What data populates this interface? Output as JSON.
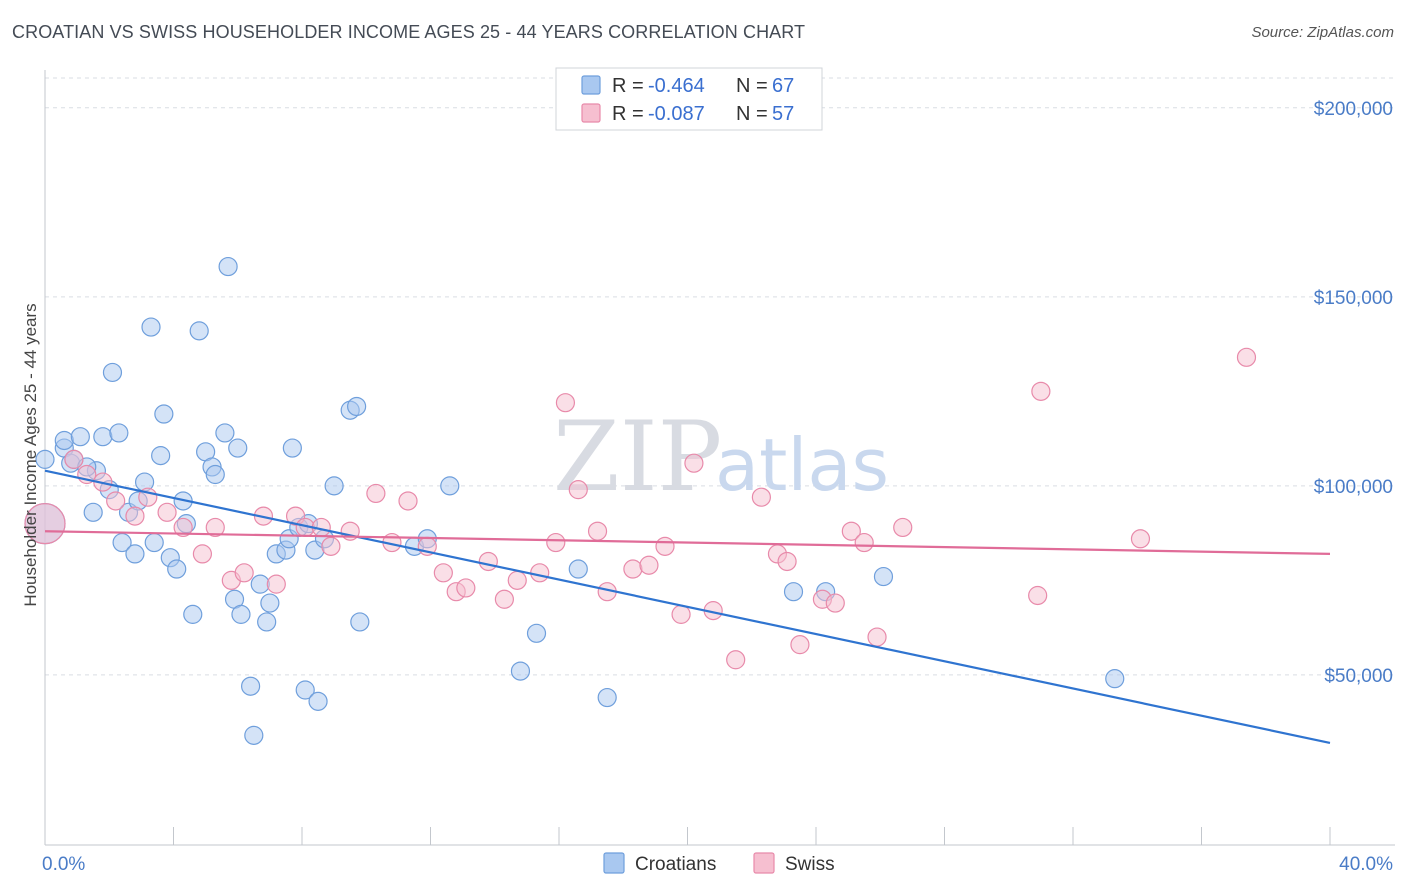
{
  "title": "CROATIAN VS SWISS HOUSEHOLDER INCOME AGES 25 - 44 YEARS CORRELATION CHART",
  "source": "Source: ZipAtlas.com",
  "watermark": {
    "zip": "ZIP",
    "atlas": "atlas"
  },
  "colors": {
    "croatians_fill": "#a9c8f0",
    "croatians_stroke": "#6f9fdc",
    "croatians_line": "#2f74d0",
    "swiss_fill": "#f6bfd0",
    "swiss_stroke": "#e88aaa",
    "swiss_line": "#e06c98",
    "grid": "#d9dde3",
    "tick_text": "#4a7cc7"
  },
  "legend": {
    "croatians": {
      "r_label": "R =",
      "r_value": "-0.464",
      "n_label": "N =",
      "n_value": "67"
    },
    "swiss": {
      "r_label": "R =",
      "r_value": "-0.087",
      "n_label": "N =",
      "n_value": "57"
    }
  },
  "bottom_legend": {
    "croatians": "Croatians",
    "swiss": "Swiss"
  },
  "chart_data": {
    "type": "scatter",
    "title": "CROATIAN VS SWISS HOUSEHOLDER INCOME AGES 25 - 44 YEARS CORRELATION CHART",
    "xlabel": "",
    "ylabel": "Householder Income Ages 25 - 44 years",
    "xlim": [
      0,
      40
    ],
    "ylim": [
      5000,
      210000
    ],
    "x_tick_labels": [
      "0.0%",
      "40.0%"
    ],
    "y_ticks": [
      50000,
      100000,
      150000,
      200000
    ],
    "y_tick_labels": [
      "$50,000",
      "$100,000",
      "$150,000",
      "$200,000"
    ],
    "grid": true,
    "legend_position": "top-center",
    "series": [
      {
        "name": "Croatians",
        "trend": {
          "x": [
            0,
            40
          ],
          "y": [
            104000,
            32000
          ]
        },
        "points": [
          [
            0.0,
            107000
          ],
          [
            0.6,
            110000
          ],
          [
            0.6,
            112000
          ],
          [
            0.8,
            106000
          ],
          [
            0.9,
            107000
          ],
          [
            1.1,
            113000
          ],
          [
            1.6,
            104000
          ],
          [
            1.3,
            105000
          ],
          [
            1.5,
            93000
          ],
          [
            1.8,
            113000
          ],
          [
            2.0,
            99000
          ],
          [
            2.1,
            130000
          ],
          [
            2.3,
            114000
          ],
          [
            2.4,
            85000
          ],
          [
            2.6,
            93000
          ],
          [
            2.8,
            82000
          ],
          [
            2.9,
            96000
          ],
          [
            3.1,
            101000
          ],
          [
            3.3,
            142000
          ],
          [
            3.4,
            85000
          ],
          [
            3.6,
            108000
          ],
          [
            3.7,
            119000
          ],
          [
            3.9,
            81000
          ],
          [
            4.1,
            78000
          ],
          [
            4.3,
            96000
          ],
          [
            4.4,
            90000
          ],
          [
            4.6,
            66000
          ],
          [
            4.8,
            141000
          ],
          [
            5.0,
            109000
          ],
          [
            5.2,
            105000
          ],
          [
            5.3,
            103000
          ],
          [
            5.6,
            114000
          ],
          [
            5.7,
            158000
          ],
          [
            5.9,
            70000
          ],
          [
            6.0,
            110000
          ],
          [
            6.1,
            66000
          ],
          [
            6.4,
            47000
          ],
          [
            6.5,
            34000
          ],
          [
            6.7,
            74000
          ],
          [
            6.9,
            64000
          ],
          [
            7.0,
            69000
          ],
          [
            7.2,
            82000
          ],
          [
            7.5,
            83000
          ],
          [
            7.6,
            86000
          ],
          [
            7.7,
            110000
          ],
          [
            7.9,
            89000
          ],
          [
            8.2,
            90000
          ],
          [
            8.1,
            46000
          ],
          [
            8.4,
            83000
          ],
          [
            8.5,
            43000
          ],
          [
            8.7,
            86000
          ],
          [
            9.0,
            100000
          ],
          [
            9.5,
            120000
          ],
          [
            9.7,
            121000
          ],
          [
            9.8,
            64000
          ],
          [
            11.5,
            84000
          ],
          [
            11.9,
            86000
          ],
          [
            12.6,
            100000
          ],
          [
            14.8,
            51000
          ],
          [
            15.3,
            61000
          ],
          [
            16.6,
            78000
          ],
          [
            17.5,
            44000
          ],
          [
            23.3,
            72000
          ],
          [
            24.3,
            72000
          ],
          [
            26.1,
            76000
          ],
          [
            33.3,
            49000
          ],
          [
            0.0,
            90000
          ]
        ]
      },
      {
        "name": "Swiss",
        "trend": {
          "x": [
            0,
            40
          ],
          "y": [
            88000,
            82000
          ]
        },
        "points": [
          [
            0.0,
            90000
          ],
          [
            0.9,
            107000
          ],
          [
            1.3,
            103000
          ],
          [
            1.8,
            101000
          ],
          [
            2.2,
            96000
          ],
          [
            2.8,
            92000
          ],
          [
            3.2,
            97000
          ],
          [
            3.8,
            93000
          ],
          [
            4.3,
            89000
          ],
          [
            4.9,
            82000
          ],
          [
            5.3,
            89000
          ],
          [
            5.8,
            75000
          ],
          [
            6.2,
            77000
          ],
          [
            6.8,
            92000
          ],
          [
            7.2,
            74000
          ],
          [
            7.8,
            92000
          ],
          [
            8.1,
            89000
          ],
          [
            8.6,
            89000
          ],
          [
            8.9,
            84000
          ],
          [
            9.5,
            88000
          ],
          [
            10.3,
            98000
          ],
          [
            10.8,
            85000
          ],
          [
            11.3,
            96000
          ],
          [
            11.9,
            84000
          ],
          [
            12.4,
            77000
          ],
          [
            12.8,
            72000
          ],
          [
            13.1,
            73000
          ],
          [
            13.8,
            80000
          ],
          [
            14.3,
            70000
          ],
          [
            14.7,
            75000
          ],
          [
            15.4,
            77000
          ],
          [
            15.9,
            85000
          ],
          [
            16.2,
            122000
          ],
          [
            16.6,
            99000
          ],
          [
            17.2,
            88000
          ],
          [
            17.5,
            72000
          ],
          [
            18.3,
            78000
          ],
          [
            18.8,
            79000
          ],
          [
            19.3,
            84000
          ],
          [
            19.8,
            66000
          ],
          [
            20.2,
            106000
          ],
          [
            20.8,
            67000
          ],
          [
            21.5,
            54000
          ],
          [
            22.3,
            97000
          ],
          [
            22.8,
            82000
          ],
          [
            23.1,
            80000
          ],
          [
            23.5,
            58000
          ],
          [
            24.2,
            70000
          ],
          [
            24.6,
            69000
          ],
          [
            25.1,
            88000
          ],
          [
            25.5,
            85000
          ],
          [
            25.9,
            60000
          ],
          [
            26.7,
            89000
          ],
          [
            30.9,
            71000
          ],
          [
            31.0,
            125000
          ],
          [
            34.1,
            86000
          ],
          [
            37.4,
            134000
          ]
        ]
      }
    ]
  }
}
